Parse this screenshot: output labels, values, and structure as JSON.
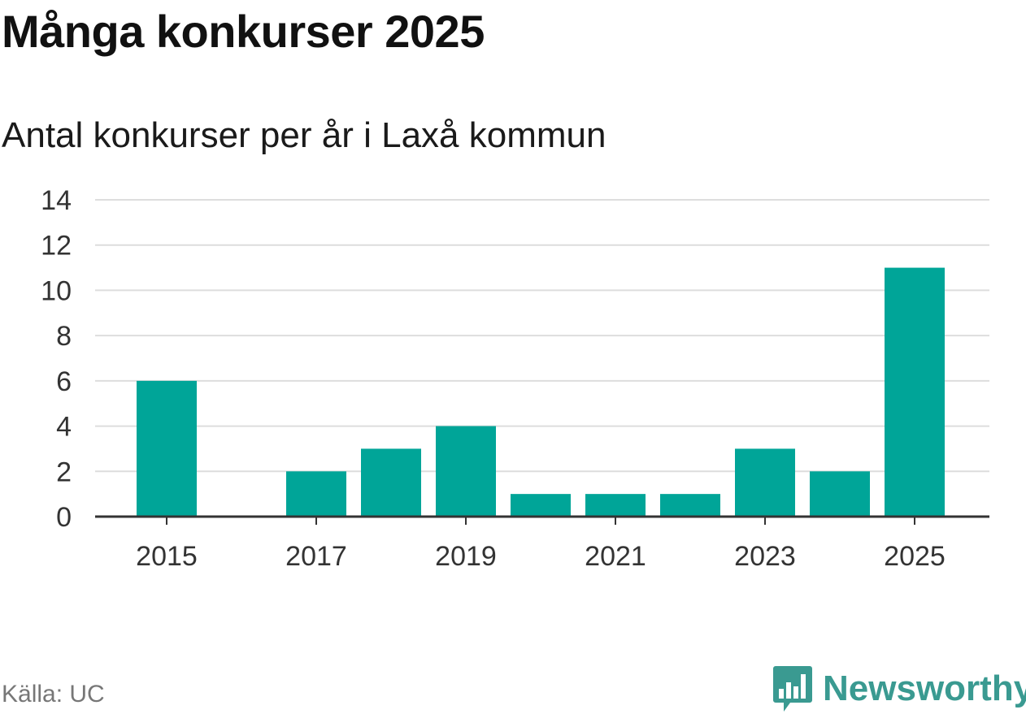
{
  "header": {
    "title": "Många konkurser 2025",
    "subtitle": "Antal konkurser per år i Laxå kommun"
  },
  "footer": {
    "source": "Källa: UC",
    "brand": "Newsworthy"
  },
  "colors": {
    "bar": "#00a598",
    "grid": "#dddddd",
    "axis": "#333333",
    "brand": "#3a9a91"
  },
  "icons": {
    "brand_logo": "bar-chart-speech-bubble-icon"
  },
  "chart_data": {
    "type": "bar",
    "title": "Många konkurser 2025",
    "subtitle": "Antal konkurser per år i Laxå kommun",
    "xlabel": "",
    "ylabel": "",
    "categories": [
      "2015",
      "2016",
      "2017",
      "2018",
      "2019",
      "2020",
      "2021",
      "2022",
      "2023",
      "2024",
      "2025"
    ],
    "values": [
      6,
      0,
      2,
      3,
      4,
      1,
      1,
      1,
      3,
      2,
      11
    ],
    "x_tick_labels": [
      "2015",
      "2017",
      "2019",
      "2021",
      "2023",
      "2025"
    ],
    "ylim": [
      0,
      14
    ],
    "y_ticks": [
      0,
      2,
      4,
      6,
      8,
      10,
      12,
      14
    ],
    "grid": true,
    "legend": "none"
  }
}
